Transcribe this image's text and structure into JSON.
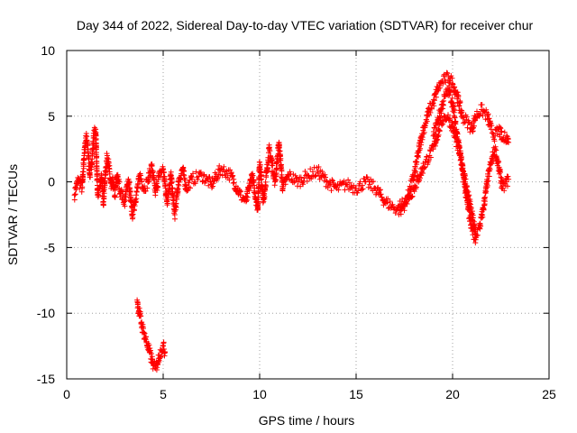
{
  "chart_data": {
    "type": "scatter",
    "title": "Day 344 of 2022, Sidereal Day-to-day VTEC variation (SDTVAR) for receiver chur",
    "xlabel": "GPS time / hours",
    "ylabel": "SDTVAR / TECUs",
    "xlim": [
      0,
      25
    ],
    "ylim": [
      -15,
      10
    ],
    "xticks": [
      0,
      5,
      10,
      15,
      20,
      25
    ],
    "yticks": [
      -15,
      -10,
      -5,
      0,
      5,
      10
    ],
    "grid": true,
    "marker": "+",
    "color": "#ff0000",
    "series": [
      {
        "name": "main trace",
        "x": [
          0.4,
          0.6,
          0.8,
          0.9,
          1.0,
          1.1,
          1.2,
          1.3,
          1.4,
          1.5,
          1.6,
          1.7,
          1.8,
          1.9,
          2.0,
          2.1,
          2.2,
          2.3,
          2.4,
          2.5,
          2.6,
          2.8,
          3.0,
          3.2,
          3.4,
          3.6,
          3.8,
          4.0,
          4.2,
          4.4,
          4.6,
          4.8,
          5.0,
          5.2,
          5.4,
          5.6,
          5.8,
          6.0,
          6.2,
          6.5,
          7.0,
          7.5,
          8.0,
          8.5,
          9.0,
          9.3,
          9.6,
          9.9,
          10.0,
          10.2,
          10.5,
          10.8,
          11.0,
          11.2,
          11.5,
          12.0,
          12.5,
          13.0,
          13.5,
          14.0,
          14.5,
          15.0,
          15.5,
          16.0,
          16.5,
          17.0,
          17.3,
          17.6,
          17.8,
          18.0,
          18.2,
          18.4,
          18.6,
          18.8,
          19.0,
          19.2,
          19.4,
          19.6,
          19.8,
          20.0,
          20.2,
          20.5,
          20.8,
          21.0,
          21.2,
          21.5,
          21.8,
          22.0,
          22.2,
          22.4,
          22.6,
          22.8,
          22.9
        ],
        "y": [
          -1.0,
          0.2,
          -0.5,
          2.0,
          3.5,
          2.5,
          0.5,
          1.5,
          3.5,
          4.0,
          -1.0,
          -0.5,
          0.5,
          -1.5,
          0.5,
          2.0,
          1.0,
          -0.5,
          0.0,
          -1.0,
          0.5,
          -0.8,
          -1.5,
          0.2,
          -2.5,
          -1.0,
          0.5,
          -0.5,
          0.0,
          1.2,
          -0.8,
          0.5,
          1.0,
          -1.5,
          0.5,
          -2.5,
          0.0,
          1.0,
          -0.5,
          0.2,
          0.5,
          -0.2,
          1.0,
          0.5,
          -1.0,
          -1.5,
          0.5,
          -2.0,
          1.5,
          -1.5,
          2.5,
          0.0,
          3.0,
          -0.5,
          0.5,
          0.0,
          0.5,
          0.8,
          0.0,
          -0.5,
          -0.2,
          -0.5,
          0.0,
          -0.5,
          -1.5,
          -2.0,
          -2.2,
          -1.5,
          -0.5,
          0.5,
          2.0,
          3.5,
          4.5,
          5.5,
          6.0,
          7.0,
          7.5,
          7.8,
          8.0,
          7.5,
          6.8,
          5.0,
          4.5,
          4.0,
          5.0,
          5.5,
          5.0,
          4.0,
          3.5,
          4.0,
          3.2,
          3.5,
          3.0
        ]
      },
      {
        "name": "secondary branch",
        "x": [
          17.2,
          17.5,
          17.8,
          18.0,
          18.3,
          18.6,
          18.8,
          19.0,
          19.2,
          19.4,
          19.6,
          19.8,
          20.0,
          20.2,
          20.4,
          20.6,
          20.8,
          21.0,
          21.2,
          21.4,
          21.6,
          21.8,
          22.0,
          22.2,
          22.4,
          22.6,
          22.8,
          22.9
        ],
        "y": [
          -1.8,
          -1.5,
          -1.0,
          -0.5,
          0.5,
          1.5,
          2.0,
          2.5,
          3.5,
          4.5,
          5.0,
          4.8,
          4.2,
          3.0,
          2.0,
          0.5,
          -1.0,
          -2.5,
          -4.0,
          -3.5,
          -2.0,
          0.0,
          1.5,
          2.5,
          1.0,
          -0.5,
          0.0,
          0.2
        ]
      },
      {
        "name": "lower branch",
        "x": [
          19.0,
          19.2,
          19.4,
          19.6,
          19.8,
          20.0,
          20.2,
          20.4,
          20.6,
          20.8,
          21.0,
          21.2
        ],
        "y": [
          3.5,
          4.5,
          5.5,
          6.5,
          7.0,
          6.0,
          4.0,
          2.0,
          0.0,
          -2.0,
          -3.5,
          -4.4
        ]
      },
      {
        "name": "outlier cluster",
        "x": [
          3.65,
          3.7,
          3.8,
          3.9,
          4.0,
          4.1,
          4.2,
          4.3,
          4.4,
          4.5,
          4.6,
          4.7,
          4.8,
          4.9,
          5.0,
          5.1
        ],
        "y": [
          -9.0,
          -9.5,
          -10.2,
          -11.0,
          -11.5,
          -12.0,
          -12.5,
          -13.0,
          -13.5,
          -14.0,
          -14.2,
          -13.8,
          -13.2,
          -12.8,
          -12.5,
          -13.0
        ]
      }
    ]
  }
}
